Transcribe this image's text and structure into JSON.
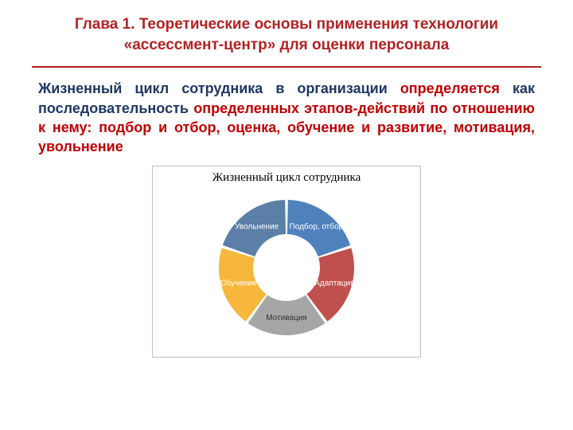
{
  "header": {
    "title": "Глава 1. Теоретические основы применения технологии «ассессмент-центр» для оценки персонала",
    "title_color": "#b22222",
    "rule_color": "#b22222"
  },
  "body": {
    "color_main": "#1f3864",
    "color_emph": "#c00000",
    "t1": "Жизненный цикл сотрудника в организации",
    "t2": " определяется ",
    "t3": "как последовательность",
    "t4": " определенных этапов-действий по отношению к нему: подбор и отбор, оценка, обучение и развитие, мотивация, увольнение"
  },
  "chart": {
    "type": "donut",
    "title": "Жизненный цикл сотрудника",
    "title_fontsize": 15,
    "border_color": "#bfbfbf",
    "background_color": "#ffffff",
    "outer_radius": 85,
    "inner_radius": 42,
    "gap_deg": 2.5,
    "start_angle": -90,
    "segments": [
      {
        "label": "Подбор, отбор",
        "value": 1,
        "color": "#4f81bd",
        "label_color": "#ffffff"
      },
      {
        "label": "Адаптация",
        "value": 1,
        "color": "#c0504d",
        "label_color": "#ffffff"
      },
      {
        "label": "Мотивация",
        "value": 1,
        "color": "#a6a6a6",
        "label_color": "#333333"
      },
      {
        "label": "Обучение",
        "value": 1,
        "color": "#f6b73c",
        "label_color": "#ffffff"
      },
      {
        "label": "Увольнение",
        "value": 1,
        "color": "#5c7fa8",
        "label_color": "#ffffff"
      }
    ]
  }
}
